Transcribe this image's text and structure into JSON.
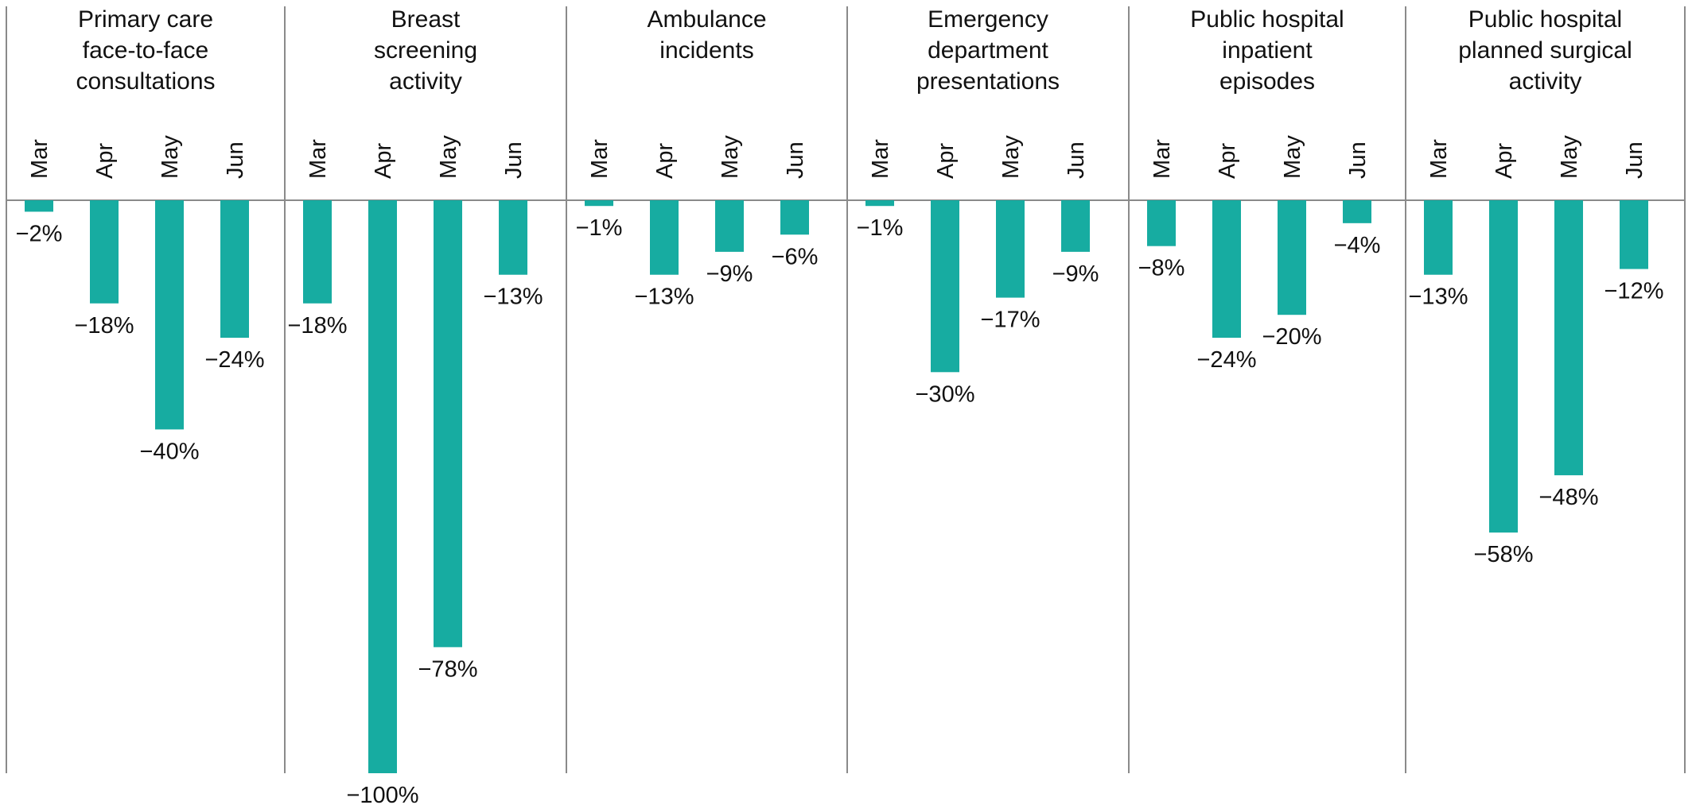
{
  "chart_data": [
    {
      "type": "bar",
      "title": "Primary care face-to-face consultations",
      "title_lines": [
        "Primary care",
        "face-to-face",
        "consultations"
      ],
      "categories": [
        "Mar",
        "Apr",
        "May",
        "Jun"
      ],
      "values": [
        -2,
        -18,
        -40,
        -24
      ],
      "labels": [
        "−2%",
        "−18%",
        "−40%",
        "−24%"
      ],
      "ylim": [
        -100,
        0
      ]
    },
    {
      "type": "bar",
      "title": "Breast screening activity",
      "title_lines": [
        "Breast",
        "screening",
        "activity"
      ],
      "categories": [
        "Mar",
        "Apr",
        "May",
        "Jun"
      ],
      "values": [
        -18,
        -100,
        -78,
        -13
      ],
      "labels": [
        "−18%",
        "−100%",
        "−78%",
        "−13%"
      ],
      "ylim": [
        -100,
        0
      ]
    },
    {
      "type": "bar",
      "title": "Ambulance incidents",
      "title_lines": [
        "Ambulance",
        "incidents"
      ],
      "categories": [
        "Mar",
        "Apr",
        "May",
        "Jun"
      ],
      "values": [
        -1,
        -13,
        -9,
        -6
      ],
      "labels": [
        "−1%",
        "−13%",
        "−9%",
        "−6%"
      ],
      "ylim": [
        -100,
        0
      ]
    },
    {
      "type": "bar",
      "title": "Emergency department presentations",
      "title_lines": [
        "Emergency",
        "department",
        "presentations"
      ],
      "categories": [
        "Mar",
        "Apr",
        "May",
        "Jun"
      ],
      "values": [
        -1,
        -30,
        -17,
        -9
      ],
      "labels": [
        "−1%",
        "−30%",
        "−17%",
        "−9%"
      ],
      "ylim": [
        -100,
        0
      ]
    },
    {
      "type": "bar",
      "title": "Public hospital inpatient episodes",
      "title_lines": [
        "Public hospital",
        "inpatient",
        "episodes"
      ],
      "categories": [
        "Mar",
        "Apr",
        "May",
        "Jun"
      ],
      "values": [
        -8,
        -24,
        -20,
        -4
      ],
      "labels": [
        "−8%",
        "−24%",
        "−20%",
        "−4%"
      ],
      "ylim": [
        -100,
        0
      ]
    },
    {
      "type": "bar",
      "title": "Public hospital planned surgical activity",
      "title_lines": [
        "Public hospital",
        "planned surgical",
        "activity"
      ],
      "categories": [
        "Mar",
        "Apr",
        "May",
        "Jun"
      ],
      "values": [
        -13,
        -58,
        -48,
        -12
      ],
      "labels": [
        "−13%",
        "−58%",
        "−48%",
        "−12%"
      ],
      "ylim": [
        -100,
        0
      ]
    }
  ],
  "colors": {
    "bar": "#17aca1",
    "text": "#111111",
    "divider": "#8a8a8a",
    "axis": "#8a8a8a"
  }
}
